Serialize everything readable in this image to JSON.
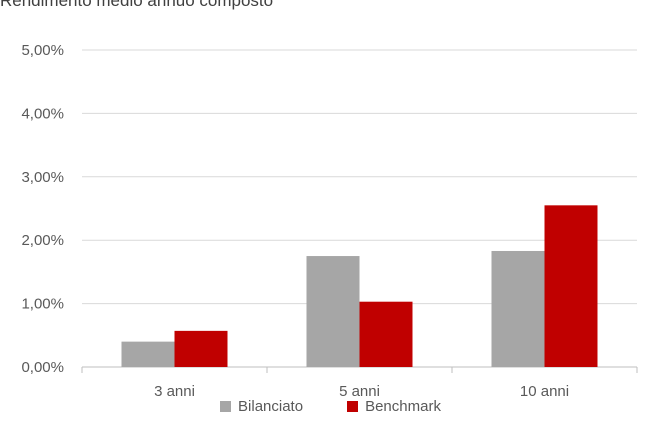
{
  "chart_data": {
    "type": "bar",
    "title": "Rendimento medio annuo composto",
    "categories": [
      "3 anni",
      "5 anni",
      "10 anni"
    ],
    "series": [
      {
        "name": "Bilanciato",
        "values": [
          0.4,
          1.75,
          1.83
        ],
        "color": "#a6a6a6"
      },
      {
        "name": "Benchmark",
        "values": [
          0.57,
          1.03,
          2.55
        ],
        "color": "#c00000"
      }
    ],
    "ylim": [
      0,
      5
    ],
    "yticks": [
      "0,00%",
      "1,00%",
      "2,00%",
      "3,00%",
      "4,00%",
      "5,00%"
    ],
    "grid": true,
    "legend_position": "bottom"
  }
}
